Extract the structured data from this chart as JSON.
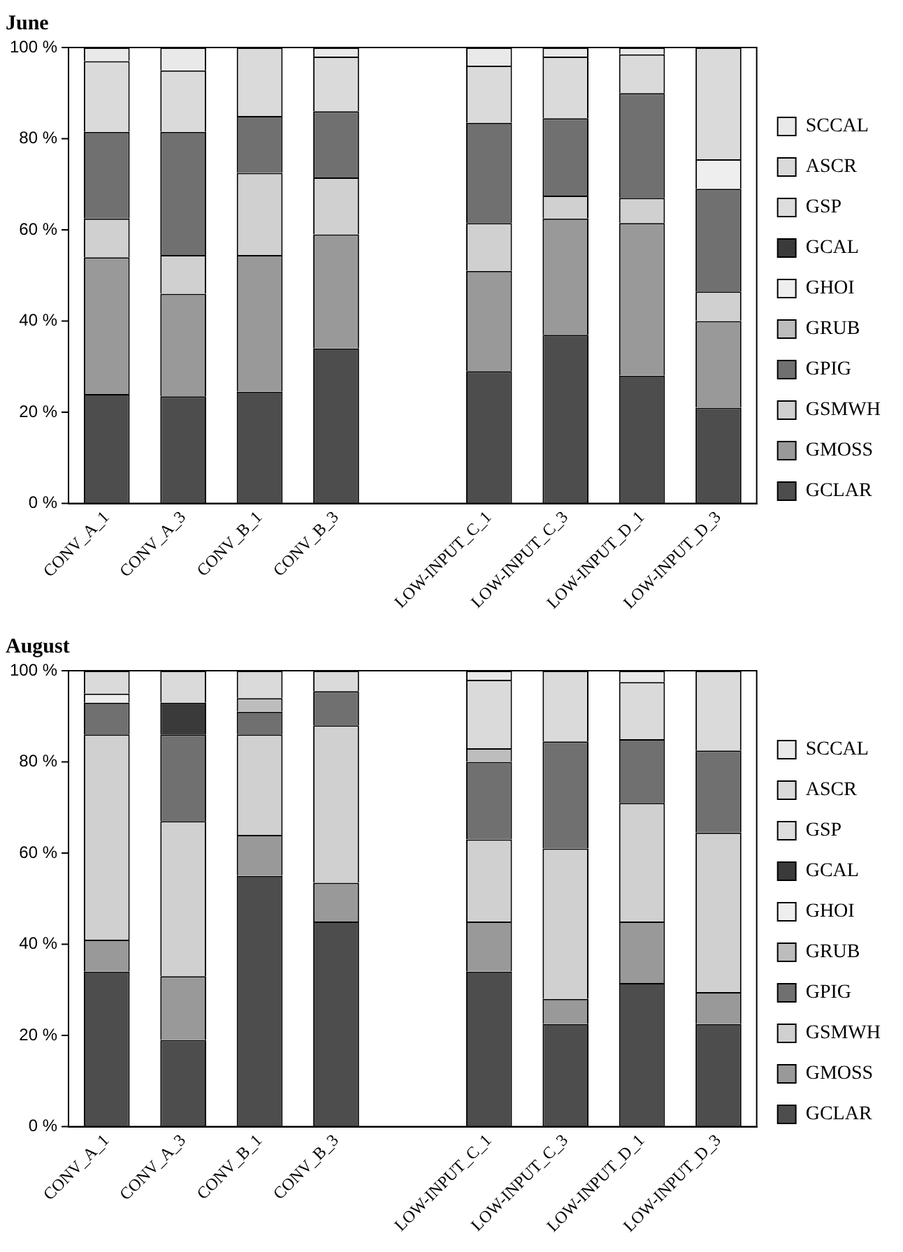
{
  "chart_data": [
    {
      "type": "bar",
      "title": "June",
      "stacked": true,
      "legend": "right",
      "grid": false,
      "categories": [
        "CONV_A_1",
        "CONV_A_3",
        "CONV_B_1",
        "CONV_B_3",
        null,
        "LOW-INPUT_C_1",
        "LOW-INPUT_C_3",
        "LOW-INPUT_D_1",
        "LOW-INPUT_D_3"
      ],
      "ylim": [
        0,
        100
      ],
      "yticks": [
        {
          "value": 0,
          "label": "0 %"
        },
        {
          "value": 20,
          "label": "20 %"
        },
        {
          "value": 40,
          "label": "40 %"
        },
        {
          "value": 60,
          "label": "60 %"
        },
        {
          "value": 80,
          "label": "80 %"
        },
        {
          "value": 100,
          "label": "100 %"
        }
      ],
      "series": [
        {
          "name": "GCLAR",
          "color": "#4d4d4d",
          "values": [
            24,
            23.5,
            24.5,
            34,
            null,
            29,
            37,
            28,
            21
          ]
        },
        {
          "name": "GMOSS",
          "color": "#999999",
          "values": [
            30,
            22.5,
            30,
            25,
            null,
            22,
            25.5,
            33.5,
            19
          ]
        },
        {
          "name": "GSMWH",
          "color": "#d0d0d0",
          "values": [
            8.5,
            8.5,
            18,
            12.5,
            null,
            10.5,
            5,
            5.5,
            6.5
          ]
        },
        {
          "name": "GPIG",
          "color": "#707070",
          "values": [
            19,
            27,
            12.5,
            14.5,
            null,
            22,
            17,
            23,
            22.5
          ]
        },
        {
          "name": "GRUB",
          "color": "#bdbdbd",
          "values": [
            0,
            0,
            0,
            0,
            null,
            0,
            0,
            0,
            0
          ]
        },
        {
          "name": "GHOI",
          "color": "#eeeeee",
          "values": [
            0,
            0,
            0,
            0,
            null,
            0,
            0,
            0,
            6.5
          ]
        },
        {
          "name": "GCAL",
          "color": "#3a3a3a",
          "values": [
            0,
            0,
            0,
            0,
            null,
            0,
            0,
            0,
            0
          ]
        },
        {
          "name": "GSP",
          "color": "#dddddd",
          "values": [
            0,
            0,
            0,
            0,
            null,
            0,
            0,
            0,
            0
          ]
        },
        {
          "name": "ASCR",
          "color": "#dadada",
          "values": [
            15.5,
            13.5,
            15,
            12,
            null,
            12.5,
            13.5,
            8.5,
            24.5
          ]
        },
        {
          "name": "SCCAL",
          "color": "#e9e9e9",
          "values": [
            3,
            5,
            0,
            2,
            null,
            4,
            2,
            1.5,
            0
          ]
        }
      ]
    },
    {
      "type": "bar",
      "title": "August",
      "stacked": true,
      "legend": "right",
      "grid": false,
      "categories": [
        "CONV_A_1",
        "CONV_A_3",
        "CONV_B_1",
        "CONV_B_3",
        null,
        "LOW-INPUT_C_1",
        "LOW-INPUT_C_3",
        "LOW-INPUT_D_1",
        "LOW-INPUT_D_3"
      ],
      "ylim": [
        0,
        100
      ],
      "yticks": [
        {
          "value": 0,
          "label": "0 %"
        },
        {
          "value": 20,
          "label": "20 %"
        },
        {
          "value": 40,
          "label": "40 %"
        },
        {
          "value": 60,
          "label": "60 %"
        },
        {
          "value": 80,
          "label": "80 %"
        },
        {
          "value": 100,
          "label": "100 %"
        }
      ],
      "series": [
        {
          "name": "GCLAR",
          "color": "#4d4d4d",
          "values": [
            34,
            19,
            55,
            45,
            null,
            34,
            22.5,
            31.5,
            22.5
          ]
        },
        {
          "name": "GMOSS",
          "color": "#999999",
          "values": [
            7,
            14,
            9,
            8.5,
            null,
            11,
            5.5,
            13.5,
            7
          ]
        },
        {
          "name": "GSMWH",
          "color": "#d0d0d0",
          "values": [
            45,
            34,
            22,
            34.5,
            null,
            18,
            33,
            26,
            35
          ]
        },
        {
          "name": "GPIG",
          "color": "#707070",
          "values": [
            7,
            19,
            5,
            7.5,
            null,
            17,
            23.5,
            14,
            18
          ]
        },
        {
          "name": "GRUB",
          "color": "#bdbdbd",
          "values": [
            0,
            0,
            3,
            0,
            null,
            3,
            0,
            0,
            0
          ]
        },
        {
          "name": "GHOI",
          "color": "#eeeeee",
          "values": [
            2,
            0,
            0,
            0,
            null,
            0,
            0,
            0,
            0
          ]
        },
        {
          "name": "GCAL",
          "color": "#3a3a3a",
          "values": [
            0,
            7,
            0,
            0,
            null,
            0,
            0,
            0,
            0
          ]
        },
        {
          "name": "GSP",
          "color": "#dddddd",
          "values": [
            0,
            0,
            0,
            0,
            null,
            0,
            0,
            0,
            0
          ]
        },
        {
          "name": "ASCR",
          "color": "#dadada",
          "values": [
            5,
            7,
            6,
            4.5,
            null,
            15,
            15.5,
            12.5,
            17.5
          ]
        },
        {
          "name": "SCCAL",
          "color": "#e9e9e9",
          "values": [
            0,
            0,
            0,
            0,
            null,
            2,
            0,
            2.5,
            0
          ]
        }
      ]
    }
  ]
}
